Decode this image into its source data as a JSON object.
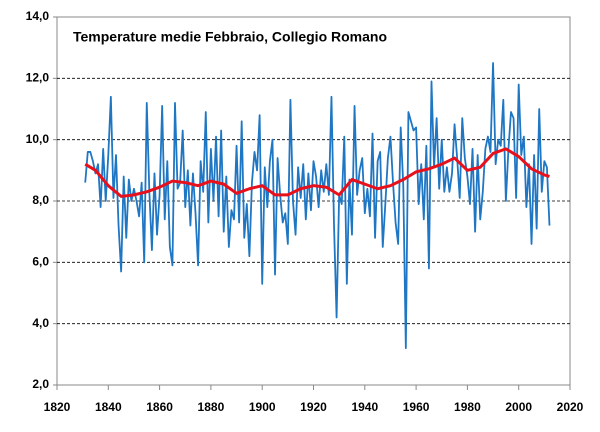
{
  "chart_data": {
    "type": "line",
    "title": "Temperature medie Febbraio, Collegio  Romano",
    "series": [
      {
        "color": "#1f77c4",
        "x": [
          1831,
          1832,
          1833,
          1834,
          1835,
          1836,
          1837,
          1838,
          1839,
          1840,
          1841,
          1842,
          1843,
          1844,
          1845,
          1846,
          1847,
          1848,
          1849,
          1850,
          1851,
          1852,
          1853,
          1854,
          1855,
          1856,
          1857,
          1858,
          1859,
          1860,
          1861,
          1862,
          1863,
          1864,
          1865,
          1866,
          1867,
          1868,
          1869,
          1870,
          1871,
          1872,
          1873,
          1874,
          1875,
          1876,
          1877,
          1878,
          1879,
          1880,
          1881,
          1882,
          1883,
          1884,
          1885,
          1886,
          1887,
          1888,
          1889,
          1890,
          1891,
          1892,
          1893,
          1894,
          1895,
          1896,
          1897,
          1898,
          1899,
          1900,
          1901,
          1902,
          1903,
          1904,
          1905,
          1906,
          1907,
          1908,
          1909,
          1910,
          1911,
          1912,
          1913,
          1914,
          1915,
          1916,
          1917,
          1918,
          1919,
          1920,
          1921,
          1922,
          1923,
          1924,
          1925,
          1926,
          1927,
          1928,
          1929,
          1930,
          1931,
          1932,
          1933,
          1934,
          1935,
          1936,
          1937,
          1938,
          1939,
          1940,
          1941,
          1942,
          1943,
          1944,
          1945,
          1946,
          1947,
          1948,
          1949,
          1950,
          1951,
          1952,
          1953,
          1954,
          1955,
          1956,
          1957,
          1958,
          1959,
          1960,
          1961,
          1962,
          1963,
          1964,
          1965,
          1966,
          1967,
          1968,
          1969,
          1970,
          1971,
          1972,
          1973,
          1974,
          1975,
          1976,
          1977,
          1978,
          1979,
          1980,
          1981,
          1982,
          1983,
          1984,
          1985,
          1986,
          1987,
          1988,
          1989,
          1990,
          1991,
          1992,
          1993,
          1994,
          1995,
          1996,
          1997,
          1998,
          1999,
          2000,
          2001,
          2002,
          2003,
          2004,
          2005,
          2006,
          2007,
          2008,
          2009,
          2010,
          2011,
          2012
        ],
        "values": [
          8.6,
          9.6,
          9.6,
          9.3,
          8.9,
          9.2,
          7.8,
          9.7,
          8.0,
          9.5,
          11.4,
          8.1,
          9.5,
          7.2,
          5.7,
          8.8,
          6.8,
          8.7,
          8.0,
          8.4,
          8.0,
          7.5,
          8.6,
          6.0,
          11.2,
          8.3,
          6.4,
          8.9,
          6.9,
          8.2,
          11.1,
          7.4,
          9.3,
          6.5,
          5.9,
          11.2,
          8.4,
          8.6,
          10.3,
          7.8,
          9.0,
          7.2,
          8.9,
          7.6,
          5.9,
          9.3,
          8.3,
          10.9,
          7.3,
          9.7,
          8.0,
          10.1,
          7.5,
          10.3,
          7.0,
          8.8,
          6.5,
          7.7,
          7.4,
          9.8,
          7.3,
          10.6,
          6.8,
          7.9,
          6.2,
          8.6,
          9.6,
          9.0,
          10.8,
          5.3,
          9.1,
          7.8,
          9.3,
          10.0,
          5.6,
          9.4,
          8.2,
          7.3,
          7.6,
          6.6,
          11.3,
          8.0,
          6.9,
          9.1,
          8.1,
          9.2,
          7.4,
          8.9,
          7.7,
          9.3,
          8.8,
          7.8,
          9.0,
          8.3,
          9.2,
          8.2,
          11.4,
          7.2,
          4.2,
          8.2,
          7.9,
          10.1,
          5.3,
          8.7,
          6.9,
          11.1,
          8.2,
          9.0,
          9.4,
          7.6,
          8.4,
          7.5,
          10.2,
          6.8,
          9.3,
          9.6,
          6.5,
          7.9,
          9.4,
          10.1,
          8.6,
          7.3,
          6.6,
          10.4,
          8.5,
          3.2,
          10.9,
          10.6,
          10.3,
          10.4,
          7.9,
          9.2,
          7.4,
          9.8,
          5.8,
          11.9,
          9.1,
          10.7,
          8.4,
          10.0,
          8.3,
          9.1,
          8.3,
          8.9,
          10.5,
          9.4,
          8.1,
          10.7,
          9.4,
          8.8,
          7.9,
          9.7,
          7.0,
          9.5,
          7.4,
          8.3,
          9.7,
          10.1,
          9.6,
          12.5,
          9.2,
          10.0,
          9.8,
          11.3,
          8.0,
          9.7,
          10.9,
          10.7,
          8.1,
          11.8,
          9.5,
          10.1,
          7.8,
          9.2,
          6.6,
          9.5,
          7.1,
          11.0,
          8.3,
          9.3,
          9.1,
          7.2
        ]
      },
      {
        "color": "#e8101a",
        "x": [
          1831,
          1835,
          1840,
          1845,
          1850,
          1855,
          1860,
          1865,
          1870,
          1875,
          1880,
          1885,
          1890,
          1895,
          1900,
          1905,
          1910,
          1915,
          1920,
          1925,
          1930,
          1935,
          1940,
          1945,
          1950,
          1955,
          1960,
          1965,
          1970,
          1975,
          1980,
          1985,
          1990,
          1995,
          2000,
          2005,
          2010,
          2012
        ],
        "values": [
          9.2,
          9.0,
          8.5,
          8.15,
          8.2,
          8.3,
          8.45,
          8.65,
          8.6,
          8.5,
          8.65,
          8.55,
          8.25,
          8.4,
          8.5,
          8.2,
          8.2,
          8.4,
          8.5,
          8.45,
          8.2,
          8.7,
          8.55,
          8.4,
          8.5,
          8.7,
          8.95,
          9.05,
          9.2,
          9.4,
          9.0,
          9.1,
          9.55,
          9.7,
          9.45,
          9.05,
          8.85,
          8.8
        ]
      }
    ],
    "xlim": [
      1820,
      2020
    ],
    "xticks": [
      1820,
      1840,
      1860,
      1880,
      1900,
      1920,
      1940,
      1960,
      1980,
      2000,
      2020
    ],
    "ylim": [
      2,
      14
    ],
    "yticks": [
      {
        "value": 2,
        "label": "2,0"
      },
      {
        "value": 4,
        "label": "4,0"
      },
      {
        "value": 6,
        "label": "6,0"
      },
      {
        "value": 8,
        "label": "8,0"
      },
      {
        "value": 10,
        "label": "10,0"
      },
      {
        "value": 12,
        "label": "12,0"
      },
      {
        "value": 14,
        "label": "14,0"
      }
    ],
    "grid": true
  }
}
